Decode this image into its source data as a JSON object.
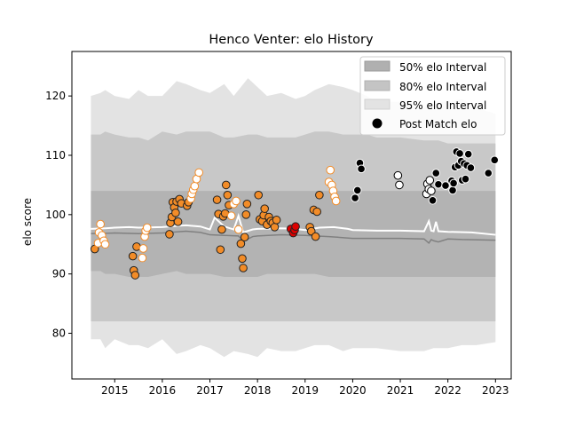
{
  "chart_data": {
    "type": "scatter",
    "title": "Henco Venter: elo History",
    "xlabel": "",
    "ylabel": "elo score",
    "xlim": [
      2014.1,
      2023.33
    ],
    "ylim": [
      72.3,
      127.5
    ],
    "x_ticks": [
      2015,
      2016,
      2017,
      2018,
      2019,
      2020,
      2021,
      2022,
      2023
    ],
    "y_ticks": [
      80,
      90,
      100,
      110,
      120
    ],
    "grid": false,
    "legend_position": "top-right",
    "legend": [
      {
        "label": "50% elo Interval",
        "kind": "band",
        "color": "#b0b0b0"
      },
      {
        "label": "80% elo Interval",
        "kind": "band",
        "color": "#c4c4c4"
      },
      {
        "label": "95% elo Interval",
        "kind": "band",
        "color": "#e3e3e3"
      },
      {
        "label": "Post Match elo",
        "kind": "marker",
        "color": "#000000"
      }
    ],
    "colors": {
      "band_95": "#e3e3e3",
      "band_80": "#c8c8c8",
      "band_50": "#b3b3b3",
      "median_line": "#ffffff",
      "mean_line": "#808080",
      "orange": "#f28c28",
      "red": "#dd0000",
      "black": "#000000",
      "white": "#ffffff"
    },
    "bands": {
      "x": [
        2014.5,
        2014.7,
        2014.8,
        2015.0,
        2015.3,
        2015.5,
        2015.7,
        2016.0,
        2016.3,
        2016.5,
        2016.8,
        2017.0,
        2017.3,
        2017.5,
        2017.8,
        2018.0,
        2018.2,
        2018.5,
        2018.8,
        2019.0,
        2019.2,
        2019.5,
        2019.8,
        2020.0,
        2020.3,
        2020.5,
        2021.0,
        2021.5,
        2021.7,
        2021.8,
        2022.0,
        2022.3,
        2022.6,
        2023.0
      ],
      "p95_upper": [
        120,
        120.5,
        121,
        120,
        119.5,
        121,
        120,
        120,
        122.5,
        122,
        121,
        120.5,
        122,
        120,
        123,
        121.5,
        120,
        120.5,
        119.5,
        120,
        121,
        122,
        121.5,
        121,
        120,
        119,
        119,
        118,
        118.5,
        119,
        119,
        119.5,
        118,
        117
      ],
      "p95_lower": [
        79,
        79,
        77.5,
        79,
        78,
        78,
        77.5,
        79,
        76.5,
        77,
        78,
        77.5,
        76,
        77,
        76.5,
        76,
        77.5,
        77,
        77,
        77.5,
        78,
        78,
        77,
        77.5,
        77.5,
        77.5,
        77,
        77,
        77.5,
        77.5,
        77.5,
        78,
        78,
        78.5
      ],
      "p80_upper": [
        113.5,
        113.5,
        114,
        113.5,
        113,
        113,
        112.5,
        114,
        113.5,
        114,
        114,
        114,
        113,
        113,
        113.5,
        113.5,
        113,
        113,
        113,
        113.5,
        114,
        114,
        113.5,
        113.5,
        113.5,
        113,
        113,
        112.5,
        112.5,
        112.5,
        112,
        112,
        112,
        112
      ],
      "p80_lower": [
        82,
        82,
        82,
        82,
        82,
        82,
        82,
        82,
        82,
        82,
        82,
        82,
        82,
        82,
        82,
        82,
        82,
        82,
        82,
        82,
        82,
        82,
        82,
        82,
        82,
        82,
        82,
        82,
        82,
        82,
        82,
        82,
        82,
        82
      ],
      "p50_upper": [
        104,
        104,
        104,
        104,
        104,
        104,
        104,
        104,
        104,
        104,
        104,
        104,
        104,
        104,
        104,
        104,
        104,
        104,
        104,
        104,
        104,
        104,
        104,
        104,
        104,
        104,
        104,
        104,
        104,
        104,
        104,
        104,
        104,
        104
      ],
      "p50_lower": [
        90.5,
        90.5,
        90,
        90,
        89.5,
        89.5,
        89.5,
        90,
        90.5,
        90,
        90,
        90,
        89.5,
        89.5,
        89.5,
        89.5,
        90,
        90,
        90,
        90,
        90,
        89.5,
        89.5,
        89.5,
        89.5,
        89.5,
        89.5,
        89.5,
        89.5,
        89.5,
        89.5,
        89.5,
        89.5,
        89.5
      ]
    },
    "median_line": {
      "x": [
        2014.5,
        2014.8,
        2015.0,
        2015.3,
        2015.5,
        2016.0,
        2016.3,
        2016.5,
        2016.8,
        2017.0,
        2017.1,
        2017.3,
        2017.5,
        2017.6,
        2017.7,
        2017.9,
        2018.0,
        2018.5,
        2018.8,
        2019.0,
        2019.3,
        2019.6,
        2019.9,
        2020.0,
        2020.5,
        2021.0,
        2021.5,
        2021.6,
        2021.65,
        2021.7,
        2021.75,
        2021.8,
        2022.0,
        2022.5,
        2023.0
      ],
      "y": [
        97.6,
        97.7,
        97.8,
        97.9,
        97.8,
        97.9,
        98.1,
        98.2,
        98.0,
        97.5,
        99.5,
        98.0,
        97.5,
        99.8,
        97.0,
        97.5,
        97.6,
        97.7,
        97.6,
        97.4,
        97.8,
        97.9,
        97.6,
        97.4,
        97.3,
        97.3,
        97.2,
        98.9,
        97.3,
        97.2,
        98.8,
        97.2,
        97.1,
        97.0,
        96.6
      ]
    },
    "mean_line": {
      "x": [
        2014.5,
        2015.0,
        2015.5,
        2016.0,
        2016.3,
        2016.5,
        2016.8,
        2017.0,
        2017.3,
        2017.6,
        2017.7,
        2017.9,
        2018.0,
        2018.5,
        2019.0,
        2019.5,
        2020.0,
        2020.5,
        2021.0,
        2021.5,
        2021.6,
        2021.65,
        2021.7,
        2021.8,
        2022.0,
        2022.3,
        2023.0
      ],
      "y": [
        96.8,
        96.9,
        96.8,
        96.9,
        97.1,
        97.2,
        97.0,
        96.6,
        96.5,
        96.4,
        95.5,
        96.3,
        96.4,
        96.6,
        96.5,
        96.3,
        96.0,
        96.0,
        96.0,
        95.9,
        95.2,
        95.8,
        95.6,
        95.4,
        95.9,
        95.8,
        95.7
      ]
    },
    "points": [
      {
        "x": 2014.58,
        "y": 94.2,
        "style": "orange-filled"
      },
      {
        "x": 2014.65,
        "y": 95.2,
        "style": "orange-hollow"
      },
      {
        "x": 2014.67,
        "y": 97.0,
        "style": "orange-hollow"
      },
      {
        "x": 2014.7,
        "y": 98.4,
        "style": "orange-hollow"
      },
      {
        "x": 2014.73,
        "y": 96.5,
        "style": "orange-hollow"
      },
      {
        "x": 2014.77,
        "y": 95.6,
        "style": "orange-hollow"
      },
      {
        "x": 2014.8,
        "y": 95.0,
        "style": "orange-hollow"
      },
      {
        "x": 2015.38,
        "y": 93.0,
        "style": "orange-filled"
      },
      {
        "x": 2015.4,
        "y": 90.6,
        "style": "orange-filled"
      },
      {
        "x": 2015.43,
        "y": 89.8,
        "style": "orange-filled"
      },
      {
        "x": 2015.46,
        "y": 94.6,
        "style": "orange-filled"
      },
      {
        "x": 2015.58,
        "y": 92.7,
        "style": "orange-hollow"
      },
      {
        "x": 2015.6,
        "y": 94.3,
        "style": "orange-hollow"
      },
      {
        "x": 2015.63,
        "y": 96.3,
        "style": "orange-hollow"
      },
      {
        "x": 2015.65,
        "y": 97.3,
        "style": "orange-hollow"
      },
      {
        "x": 2015.68,
        "y": 97.8,
        "style": "orange-hollow"
      },
      {
        "x": 2016.15,
        "y": 96.7,
        "style": "orange-filled"
      },
      {
        "x": 2016.17,
        "y": 98.6,
        "style": "orange-filled"
      },
      {
        "x": 2016.2,
        "y": 99.6,
        "style": "orange-filled"
      },
      {
        "x": 2016.22,
        "y": 102.1,
        "style": "orange-filled"
      },
      {
        "x": 2016.25,
        "y": 101.2,
        "style": "orange-filled"
      },
      {
        "x": 2016.28,
        "y": 100.3,
        "style": "orange-filled"
      },
      {
        "x": 2016.3,
        "y": 102.2,
        "style": "orange-filled"
      },
      {
        "x": 2016.33,
        "y": 98.8,
        "style": "orange-filled"
      },
      {
        "x": 2016.36,
        "y": 102.6,
        "style": "orange-filled"
      },
      {
        "x": 2016.4,
        "y": 101.9,
        "style": "orange-filled"
      },
      {
        "x": 2016.52,
        "y": 101.5,
        "style": "orange-filled"
      },
      {
        "x": 2016.55,
        "y": 102.1,
        "style": "orange-filled"
      },
      {
        "x": 2016.6,
        "y": 102.7,
        "style": "orange-hollow"
      },
      {
        "x": 2016.62,
        "y": 103.5,
        "style": "orange-hollow"
      },
      {
        "x": 2016.65,
        "y": 104.2,
        "style": "orange-hollow"
      },
      {
        "x": 2016.68,
        "y": 104.8,
        "style": "orange-hollow"
      },
      {
        "x": 2016.72,
        "y": 106.0,
        "style": "orange-hollow"
      },
      {
        "x": 2016.77,
        "y": 107.1,
        "style": "orange-hollow"
      },
      {
        "x": 2017.15,
        "y": 102.5,
        "style": "orange-filled"
      },
      {
        "x": 2017.18,
        "y": 100.1,
        "style": "orange-filled"
      },
      {
        "x": 2017.22,
        "y": 94.1,
        "style": "orange-filled"
      },
      {
        "x": 2017.25,
        "y": 97.5,
        "style": "orange-filled"
      },
      {
        "x": 2017.28,
        "y": 99.7,
        "style": "orange-filled"
      },
      {
        "x": 2017.32,
        "y": 100.2,
        "style": "orange-filled"
      },
      {
        "x": 2017.34,
        "y": 105.0,
        "style": "orange-filled"
      },
      {
        "x": 2017.37,
        "y": 103.3,
        "style": "orange-filled"
      },
      {
        "x": 2017.4,
        "y": 101.6,
        "style": "orange-filled"
      },
      {
        "x": 2017.45,
        "y": 99.8,
        "style": "orange-hollow"
      },
      {
        "x": 2017.5,
        "y": 101.8,
        "style": "orange-hollow"
      },
      {
        "x": 2017.55,
        "y": 102.3,
        "style": "orange-hollow"
      },
      {
        "x": 2017.6,
        "y": 97.5,
        "style": "orange-hollow"
      },
      {
        "x": 2017.65,
        "y": 95.1,
        "style": "orange-filled"
      },
      {
        "x": 2017.68,
        "y": 92.6,
        "style": "orange-filled"
      },
      {
        "x": 2017.7,
        "y": 91.0,
        "style": "orange-filled"
      },
      {
        "x": 2017.73,
        "y": 96.2,
        "style": "orange-filled"
      },
      {
        "x": 2017.76,
        "y": 100.0,
        "style": "orange-filled"
      },
      {
        "x": 2017.78,
        "y": 101.8,
        "style": "orange-filled"
      },
      {
        "x": 2018.02,
        "y": 103.3,
        "style": "orange-filled"
      },
      {
        "x": 2018.05,
        "y": 99.2,
        "style": "orange-filled"
      },
      {
        "x": 2018.1,
        "y": 98.9,
        "style": "orange-filled"
      },
      {
        "x": 2018.13,
        "y": 99.9,
        "style": "orange-filled"
      },
      {
        "x": 2018.15,
        "y": 101.0,
        "style": "orange-filled"
      },
      {
        "x": 2018.2,
        "y": 98.3,
        "style": "orange-filled"
      },
      {
        "x": 2018.24,
        "y": 99.6,
        "style": "orange-filled"
      },
      {
        "x": 2018.28,
        "y": 98.9,
        "style": "orange-filled"
      },
      {
        "x": 2018.32,
        "y": 98.6,
        "style": "orange-filled"
      },
      {
        "x": 2018.36,
        "y": 97.9,
        "style": "orange-filled"
      },
      {
        "x": 2018.4,
        "y": 99.1,
        "style": "orange-filled"
      },
      {
        "x": 2018.7,
        "y": 97.6,
        "style": "red"
      },
      {
        "x": 2018.75,
        "y": 96.9,
        "style": "red"
      },
      {
        "x": 2018.78,
        "y": 97.4,
        "style": "red"
      },
      {
        "x": 2018.8,
        "y": 98.0,
        "style": "red"
      },
      {
        "x": 2019.1,
        "y": 97.9,
        "style": "orange-filled"
      },
      {
        "x": 2019.13,
        "y": 97.2,
        "style": "orange-filled"
      },
      {
        "x": 2019.18,
        "y": 100.8,
        "style": "orange-filled"
      },
      {
        "x": 2019.22,
        "y": 96.3,
        "style": "orange-filled"
      },
      {
        "x": 2019.25,
        "y": 100.5,
        "style": "orange-filled"
      },
      {
        "x": 2019.3,
        "y": 103.3,
        "style": "orange-filled"
      },
      {
        "x": 2019.5,
        "y": 105.5,
        "style": "orange-hollow"
      },
      {
        "x": 2019.53,
        "y": 107.5,
        "style": "orange-hollow"
      },
      {
        "x": 2019.56,
        "y": 105.0,
        "style": "orange-hollow"
      },
      {
        "x": 2019.59,
        "y": 104.0,
        "style": "orange-hollow"
      },
      {
        "x": 2019.62,
        "y": 103.0,
        "style": "orange-hollow"
      },
      {
        "x": 2019.65,
        "y": 102.3,
        "style": "orange-hollow"
      },
      {
        "x": 2020.05,
        "y": 102.8,
        "style": "black"
      },
      {
        "x": 2020.1,
        "y": 104.1,
        "style": "black"
      },
      {
        "x": 2020.15,
        "y": 108.7,
        "style": "black"
      },
      {
        "x": 2020.18,
        "y": 107.7,
        "style": "black"
      },
      {
        "x": 2020.95,
        "y": 106.6,
        "style": "white"
      },
      {
        "x": 2020.98,
        "y": 105.0,
        "style": "white"
      },
      {
        "x": 2021.55,
        "y": 103.5,
        "style": "white"
      },
      {
        "x": 2021.57,
        "y": 105.2,
        "style": "white"
      },
      {
        "x": 2021.6,
        "y": 104.3,
        "style": "white"
      },
      {
        "x": 2021.62,
        "y": 105.8,
        "style": "white"
      },
      {
        "x": 2021.65,
        "y": 104.0,
        "style": "white"
      },
      {
        "x": 2021.68,
        "y": 102.4,
        "style": "black"
      },
      {
        "x": 2021.75,
        "y": 107.0,
        "style": "black"
      },
      {
        "x": 2021.8,
        "y": 105.1,
        "style": "black"
      },
      {
        "x": 2021.95,
        "y": 104.9,
        "style": "black"
      },
      {
        "x": 2022.08,
        "y": 105.7,
        "style": "black"
      },
      {
        "x": 2022.1,
        "y": 104.1,
        "style": "black"
      },
      {
        "x": 2022.12,
        "y": 105.3,
        "style": "black"
      },
      {
        "x": 2022.15,
        "y": 108.0,
        "style": "black"
      },
      {
        "x": 2022.18,
        "y": 110.6,
        "style": "black"
      },
      {
        "x": 2022.22,
        "y": 108.3,
        "style": "black"
      },
      {
        "x": 2022.25,
        "y": 110.3,
        "style": "black"
      },
      {
        "x": 2022.28,
        "y": 109.0,
        "style": "black"
      },
      {
        "x": 2022.3,
        "y": 105.8,
        "style": "black"
      },
      {
        "x": 2022.34,
        "y": 108.6,
        "style": "black"
      },
      {
        "x": 2022.37,
        "y": 106.0,
        "style": "black"
      },
      {
        "x": 2022.4,
        "y": 108.3,
        "style": "black"
      },
      {
        "x": 2022.43,
        "y": 110.2,
        "style": "black"
      },
      {
        "x": 2022.48,
        "y": 107.9,
        "style": "black"
      },
      {
        "x": 2022.85,
        "y": 107.0,
        "style": "black"
      },
      {
        "x": 2022.98,
        "y": 109.2,
        "style": "black"
      }
    ]
  }
}
